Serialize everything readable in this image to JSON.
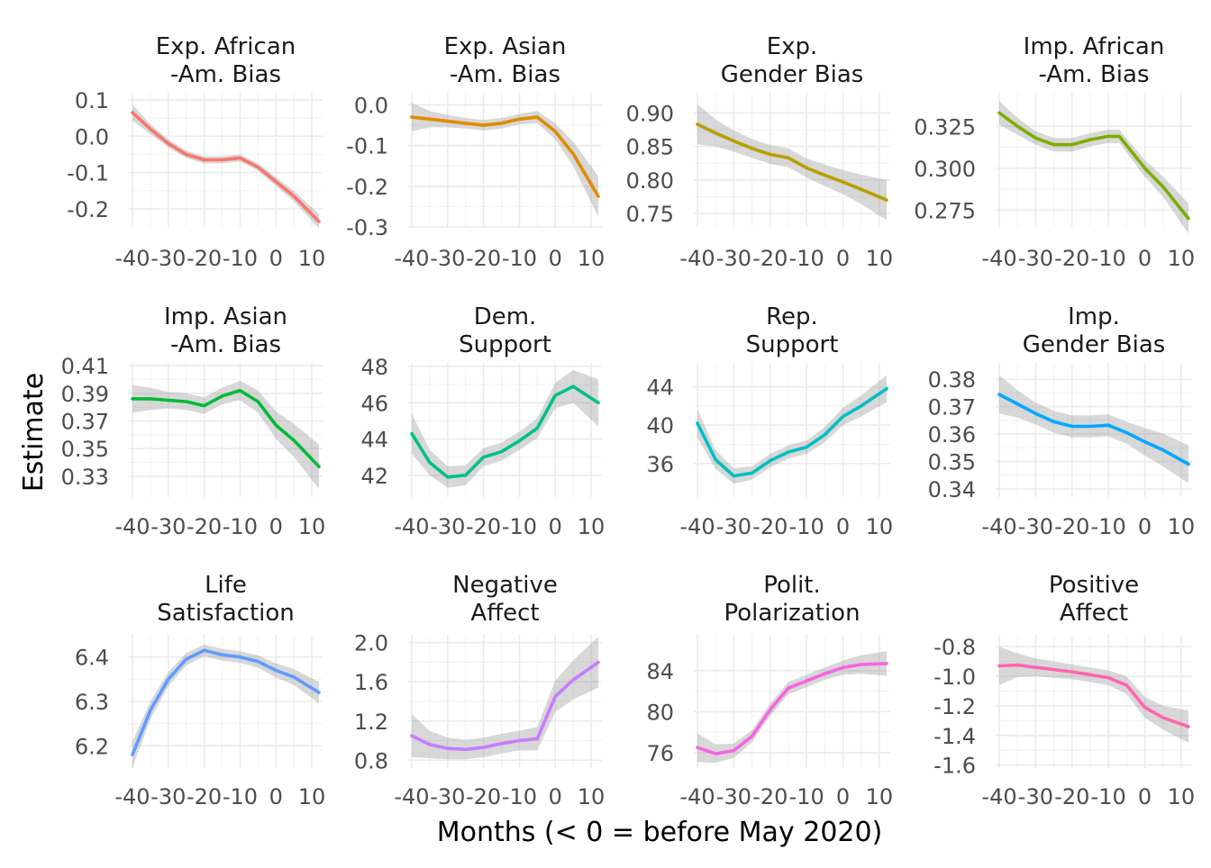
{
  "figure": {
    "ylabel": "Estimate",
    "xlabel": "Months (< 0 = before May 2020)",
    "x_ticks": [
      -40,
      -30,
      -20,
      -10,
      0,
      10
    ],
    "xlim": [
      -41,
      13
    ],
    "grid": true,
    "smooth_band": true
  },
  "chart_data": [
    {
      "type": "line",
      "title": [
        "Exp. African",
        "-Am. Bias"
      ],
      "color": "#F8766D",
      "ylim": [
        -0.25,
        0.12
      ],
      "y_ticks": [
        0.1,
        0.0,
        -0.1,
        -0.2
      ],
      "y_tick_labels": [
        "0.1",
        "0.0",
        "-0.1",
        "-0.2"
      ],
      "x": [
        -40,
        -35,
        -30,
        -25,
        -20,
        -15,
        -10,
        -5,
        0,
        5,
        12
      ],
      "y": [
        0.065,
        0.02,
        -0.02,
        -0.05,
        -0.065,
        -0.065,
        -0.06,
        -0.085,
        -0.125,
        -0.165,
        -0.235
      ],
      "band": [
        0.022,
        0.014,
        0.011,
        0.01,
        0.01,
        0.01,
        0.01,
        0.01,
        0.012,
        0.015,
        0.02
      ]
    },
    {
      "type": "line",
      "title": [
        "Exp. Asian",
        "-Am. Bias"
      ],
      "color": "#DE8C00",
      "ylim": [
        -0.3,
        0.03
      ],
      "y_ticks": [
        0.0,
        -0.1,
        -0.2,
        -0.3
      ],
      "y_tick_labels": [
        "0.0",
        "-0.1",
        "-0.2",
        "-0.3"
      ],
      "x": [
        -40,
        -35,
        -30,
        -25,
        -20,
        -15,
        -10,
        -5,
        0,
        5,
        12
      ],
      "y": [
        -0.03,
        -0.035,
        -0.04,
        -0.045,
        -0.05,
        -0.045,
        -0.035,
        -0.03,
        -0.065,
        -0.12,
        -0.225
      ],
      "band": [
        0.035,
        0.02,
        0.015,
        0.013,
        0.013,
        0.013,
        0.013,
        0.015,
        0.02,
        0.03,
        0.05
      ]
    },
    {
      "type": "line",
      "title": [
        "Exp.",
        "Gender Bias"
      ],
      "color": "#B79F00",
      "ylim": [
        0.73,
        0.93
      ],
      "y_ticks": [
        0.9,
        0.85,
        0.8,
        0.75
      ],
      "y_tick_labels": [
        "0.90",
        "0.85",
        "0.80",
        "0.75"
      ],
      "x": [
        -40,
        -35,
        -30,
        -25,
        -20,
        -15,
        -10,
        -5,
        0,
        5,
        12
      ],
      "y": [
        0.883,
        0.87,
        0.858,
        0.847,
        0.838,
        0.833,
        0.818,
        0.807,
        0.797,
        0.786,
        0.77
      ],
      "band": [
        0.03,
        0.02,
        0.016,
        0.014,
        0.014,
        0.014,
        0.014,
        0.016,
        0.018,
        0.022,
        0.03
      ]
    },
    {
      "type": "line",
      "title": [
        "Imp. African",
        "-Am. Bias"
      ],
      "color": "#7CAE00",
      "ylim": [
        0.265,
        0.345
      ],
      "y_ticks": [
        0.325,
        0.3,
        0.275
      ],
      "y_tick_labels": [
        "0.325",
        "0.300",
        "0.275"
      ],
      "x": [
        -40,
        -35,
        -30,
        -25,
        -20,
        -15,
        -10,
        -7,
        0,
        5,
        12
      ],
      "y": [
        0.333,
        0.325,
        0.318,
        0.314,
        0.314,
        0.317,
        0.319,
        0.319,
        0.3,
        0.289,
        0.27
      ],
      "band": [
        0.007,
        0.005,
        0.004,
        0.004,
        0.004,
        0.004,
        0.004,
        0.004,
        0.005,
        0.006,
        0.009
      ]
    },
    {
      "type": "line",
      "title": [
        "Imp. Asian",
        "-Am. Bias"
      ],
      "color": "#00BA38",
      "ylim": [
        0.315,
        0.412
      ],
      "y_ticks": [
        0.41,
        0.39,
        0.37,
        0.35,
        0.33
      ],
      "y_tick_labels": [
        "0.41",
        "0.39",
        "0.37",
        "0.35",
        "0.33"
      ],
      "x": [
        -40,
        -35,
        -30,
        -25,
        -20,
        -15,
        -10,
        -5,
        0,
        5,
        12
      ],
      "y": [
        0.386,
        0.386,
        0.385,
        0.384,
        0.381,
        0.388,
        0.392,
        0.384,
        0.367,
        0.356,
        0.337
      ],
      "band": [
        0.01,
        0.008,
        0.006,
        0.006,
        0.006,
        0.006,
        0.007,
        0.008,
        0.01,
        0.012,
        0.016
      ]
    },
    {
      "type": "line",
      "title": [
        "Dem.",
        "Support"
      ],
      "color": "#00C08B",
      "ylim": [
        40.8,
        48.2
      ],
      "y_ticks": [
        48,
        46,
        44,
        42
      ],
      "y_tick_labels": [
        "48",
        "46",
        "44",
        "42"
      ],
      "x": [
        -40,
        -35,
        -30,
        -25,
        -20,
        -15,
        -10,
        -5,
        0,
        5,
        12
      ],
      "y": [
        44.3,
        42.7,
        41.9,
        42.0,
        43.0,
        43.3,
        43.9,
        44.6,
        46.4,
        46.9,
        46.0
      ],
      "band": [
        1.1,
        0.7,
        0.6,
        0.55,
        0.5,
        0.5,
        0.5,
        0.55,
        0.7,
        0.9,
        1.3
      ]
    },
    {
      "type": "line",
      "title": [
        "Rep.",
        "Support"
      ],
      "color": "#00BFC4",
      "ylim": [
        32.5,
        46.5
      ],
      "y_ticks": [
        44,
        40,
        36
      ],
      "y_tick_labels": [
        "44",
        "40",
        "36"
      ],
      "x": [
        -40,
        -35,
        -30,
        -25,
        -20,
        -15,
        -10,
        -5,
        0,
        5,
        12
      ],
      "y": [
        40.2,
        36.4,
        34.7,
        35.0,
        36.3,
        37.2,
        37.7,
        39.0,
        40.9,
        42.0,
        43.8
      ],
      "band": [
        1.5,
        1.0,
        0.8,
        0.7,
        0.7,
        0.7,
        0.7,
        0.8,
        0.9,
        1.1,
        1.4
      ]
    },
    {
      "type": "line",
      "title": [
        "Imp.",
        "Gender Bias"
      ],
      "color": "#00A9FF",
      "ylim": [
        0.337,
        0.386
      ],
      "y_ticks": [
        0.38,
        0.37,
        0.36,
        0.35,
        0.34
      ],
      "y_tick_labels": [
        "0.38",
        "0.37",
        "0.36",
        "0.35",
        "0.34"
      ],
      "x": [
        -40,
        -35,
        -30,
        -25,
        -20,
        -15,
        -10,
        -5,
        0,
        5,
        12
      ],
      "y": [
        0.3745,
        0.371,
        0.3675,
        0.3645,
        0.3628,
        0.3628,
        0.3632,
        0.3605,
        0.3572,
        0.3542,
        0.349
      ],
      "band": [
        0.007,
        0.005,
        0.004,
        0.004,
        0.004,
        0.004,
        0.004,
        0.004,
        0.005,
        0.006,
        0.007
      ]
    },
    {
      "type": "line",
      "title": [
        "Life",
        "Satisfaction"
      ],
      "color": "#619CFF",
      "ylim": [
        6.15,
        6.45
      ],
      "y_ticks": [
        6.4,
        6.3,
        6.2
      ],
      "y_tick_labels": [
        "6.4",
        "6.3",
        "6.2"
      ],
      "x": [
        -40,
        -35,
        -30,
        -25,
        -20,
        -15,
        -10,
        -5,
        0,
        5,
        12
      ],
      "y": [
        6.18,
        6.28,
        6.35,
        6.395,
        6.415,
        6.405,
        6.4,
        6.39,
        6.37,
        6.355,
        6.32
      ],
      "band": [
        0.03,
        0.02,
        0.016,
        0.014,
        0.013,
        0.013,
        0.013,
        0.014,
        0.016,
        0.018,
        0.024
      ]
    },
    {
      "type": "line",
      "title": [
        "Negative",
        "Affect"
      ],
      "color": "#C77CFF",
      "ylim": [
        0.72,
        2.08
      ],
      "y_ticks": [
        2.0,
        1.6,
        1.2,
        0.8
      ],
      "y_tick_labels": [
        "2.0",
        "1.6",
        "1.2",
        "0.8"
      ],
      "x": [
        -40,
        -35,
        -30,
        -25,
        -20,
        -15,
        -10,
        -5,
        0,
        5,
        12
      ],
      "y": [
        1.05,
        0.96,
        0.92,
        0.91,
        0.93,
        0.97,
        1.0,
        1.02,
        1.45,
        1.62,
        1.8
      ],
      "band": [
        0.22,
        0.14,
        0.11,
        0.1,
        0.1,
        0.1,
        0.1,
        0.12,
        0.16,
        0.2,
        0.26
      ]
    },
    {
      "type": "line",
      "title": [
        "Polit.",
        "Polarization"
      ],
      "color": "#F564E3",
      "ylim": [
        74.5,
        87.5
      ],
      "y_ticks": [
        84,
        80,
        76
      ],
      "y_tick_labels": [
        "84",
        "80",
        "76"
      ],
      "x": [
        -40,
        -35,
        -30,
        -25,
        -20,
        -15,
        -10,
        -5,
        0,
        5,
        12
      ],
      "y": [
        76.5,
        75.9,
        76.2,
        77.6,
        80.2,
        82.3,
        83.0,
        83.7,
        84.3,
        84.6,
        84.7
      ],
      "band": [
        1.4,
        0.9,
        0.7,
        0.6,
        0.6,
        0.6,
        0.6,
        0.6,
        0.7,
        0.9,
        1.2
      ]
    },
    {
      "type": "line",
      "title": [
        "Positive",
        "Affect"
      ],
      "color": "#FF64B0",
      "ylim": [
        -1.62,
        -0.72
      ],
      "y_ticks": [
        -0.8,
        -1.0,
        -1.2,
        -1.4,
        -1.6
      ],
      "y_tick_labels": [
        "-0.8",
        "-1.0",
        "-1.2",
        "-1.4",
        "-1.6"
      ],
      "x": [
        -40,
        -35,
        -30,
        -25,
        -20,
        -15,
        -10,
        -5,
        0,
        5,
        12
      ],
      "y": [
        -0.93,
        -0.925,
        -0.94,
        -0.955,
        -0.97,
        -0.99,
        -1.01,
        -1.06,
        -1.21,
        -1.28,
        -1.34
      ],
      "band": [
        0.13,
        0.08,
        0.06,
        0.055,
        0.05,
        0.05,
        0.05,
        0.06,
        0.07,
        0.08,
        0.11
      ]
    }
  ]
}
